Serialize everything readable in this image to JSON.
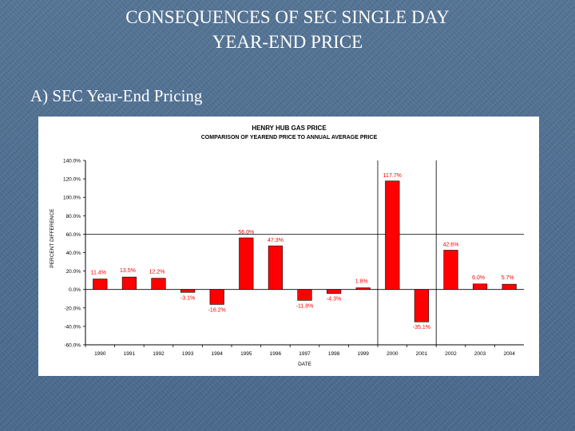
{
  "slide": {
    "title_line1": "CONSEQUENCES OF SEC SINGLE DAY",
    "title_line2": "YEAR-END PRICE",
    "subtitle": "A) SEC Year-End Pricing"
  },
  "colors": {
    "bar": "#ff0000",
    "label": "#ff0000",
    "axis": "#000000"
  },
  "chart_data": {
    "type": "bar",
    "title": "HENRY HUB GAS PRICE",
    "subtitle": "COMPARISON OF YEAREND PRICE TO ANNUAL AVERAGE PRICE",
    "xlabel": "DATE",
    "ylabel": "PERCENT DIFFERENCE",
    "categories": [
      "1990",
      "1991",
      "1992",
      "1993",
      "1994",
      "1995",
      "1996",
      "1997",
      "1998",
      "1999",
      "2000",
      "2001",
      "2002",
      "2003",
      "2004"
    ],
    "values": [
      11.4,
      13.5,
      12.2,
      -3.1,
      -16.2,
      56.0,
      47.3,
      -11.8,
      -4.3,
      1.8,
      117.7,
      -35.1,
      42.6,
      6.0,
      5.7
    ],
    "value_labels": [
      "11.4%",
      "13.5%",
      "12.2%",
      "-3.1%",
      "-16.2%",
      "56.0%",
      "47.3%",
      "-11.8%",
      "-4.3%",
      "1.8%",
      "117.7%",
      "-35.1%",
      "42.6%",
      "6.0%",
      "5.7%"
    ],
    "ylim": [
      -60,
      140
    ],
    "y_ticks": [
      140,
      120,
      100,
      80,
      60,
      40,
      20,
      0,
      -20,
      -40,
      -60
    ],
    "y_tick_labels": [
      "140.0%",
      "120.0%",
      "100.0%",
      "80.0%",
      "60.0%",
      "40.0%",
      "20.0%",
      "0.0%",
      "-20.0%",
      "-40.0%",
      "-60.0%"
    ],
    "reference_lines": {
      "y_value": 60,
      "x_after_categories": [
        "1999",
        "2001"
      ]
    },
    "legend": "none",
    "grid": false
  }
}
